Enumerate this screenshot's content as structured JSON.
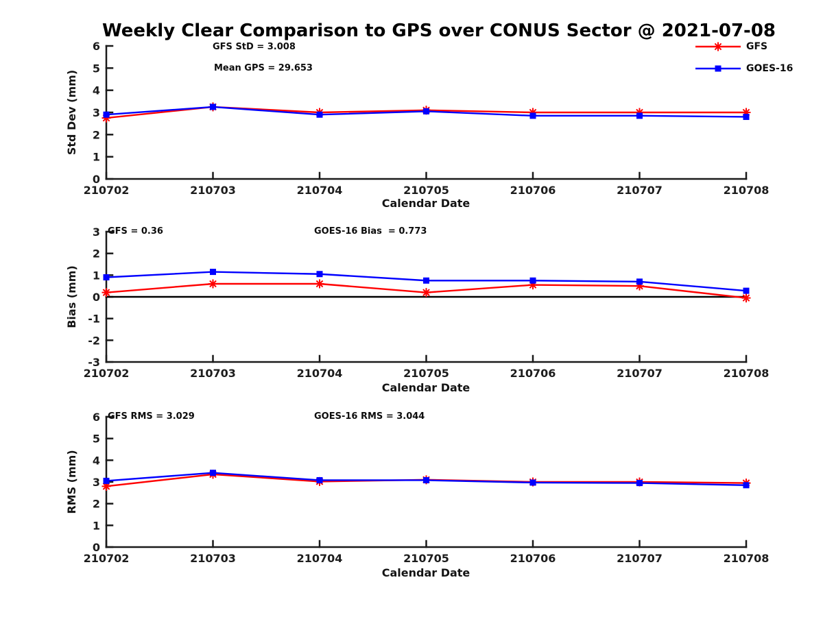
{
  "title": "Weekly Clear Comparison to GPS over CONUS Sector @ 2021-07-08",
  "colors": {
    "gfs": "#ff0000",
    "goes16": "#0000ff",
    "axis": "#1a1a1a",
    "zero_line": "#000000",
    "text": "#141414"
  },
  "legend": {
    "position": "top-right",
    "items": [
      {
        "label": "GFS",
        "color": "#ff0000",
        "marker": "asterisk"
      },
      {
        "label": "GOES-16",
        "color": "#0000ff",
        "marker": "square"
      }
    ]
  },
  "chart_data": [
    {
      "type": "line",
      "ylabel": "Std Dev (mm)",
      "xlabel": "Calendar Date",
      "categories": [
        "210702",
        "210703",
        "210704",
        "210705",
        "210706",
        "210707",
        "210708"
      ],
      "ylim": [
        0,
        6
      ],
      "yticks": [
        0,
        1,
        2,
        3,
        4,
        5,
        6
      ],
      "grid": false,
      "zero_line": false,
      "annotations": [
        {
          "text": "GFS StD = 3.008"
        },
        {
          "text": "Mean GPS = 29.653"
        }
      ],
      "series": [
        {
          "name": "GFS",
          "color": "#ff0000",
          "marker": "asterisk",
          "values": [
            2.75,
            3.25,
            3.0,
            3.1,
            3.0,
            3.0,
            3.0
          ]
        },
        {
          "name": "GOES-16",
          "color": "#0000ff",
          "marker": "square",
          "values": [
            2.9,
            3.25,
            2.9,
            3.05,
            2.85,
            2.85,
            2.8
          ]
        }
      ]
    },
    {
      "type": "line",
      "ylabel": "Bias (mm)",
      "xlabel": "Calendar Date",
      "categories": [
        "210702",
        "210703",
        "210704",
        "210705",
        "210706",
        "210707",
        "210708"
      ],
      "ylim": [
        -3,
        3
      ],
      "yticks": [
        -3,
        -2,
        -1,
        0,
        1,
        2,
        3
      ],
      "grid": false,
      "zero_line": true,
      "annotations": [
        {
          "text": "GFS = 0.36"
        },
        {
          "text": "GOES-16 Bias  = 0.773"
        }
      ],
      "series": [
        {
          "name": "GFS",
          "color": "#ff0000",
          "marker": "asterisk",
          "values": [
            0.2,
            0.6,
            0.6,
            0.2,
            0.55,
            0.5,
            -0.05
          ]
        },
        {
          "name": "GOES-16",
          "color": "#0000ff",
          "marker": "square",
          "values": [
            0.9,
            1.15,
            1.05,
            0.75,
            0.75,
            0.7,
            0.28
          ]
        }
      ]
    },
    {
      "type": "line",
      "ylabel": "RMS (mm)",
      "xlabel": "Calendar Date",
      "categories": [
        "210702",
        "210703",
        "210704",
        "210705",
        "210706",
        "210707",
        "210708"
      ],
      "ylim": [
        0,
        6
      ],
      "yticks": [
        0,
        1,
        2,
        3,
        4,
        5,
        6
      ],
      "grid": false,
      "zero_line": false,
      "annotations": [
        {
          "text": "GFS RMS = 3.029"
        },
        {
          "text": "GOES-16 RMS = 3.044"
        }
      ],
      "series": [
        {
          "name": "GFS",
          "color": "#ff0000",
          "marker": "asterisk",
          "values": [
            2.8,
            3.35,
            3.02,
            3.1,
            3.0,
            3.0,
            2.95
          ]
        },
        {
          "name": "GOES-16",
          "color": "#0000ff",
          "marker": "square",
          "values": [
            3.05,
            3.42,
            3.08,
            3.08,
            2.97,
            2.95,
            2.85
          ]
        }
      ]
    }
  ]
}
